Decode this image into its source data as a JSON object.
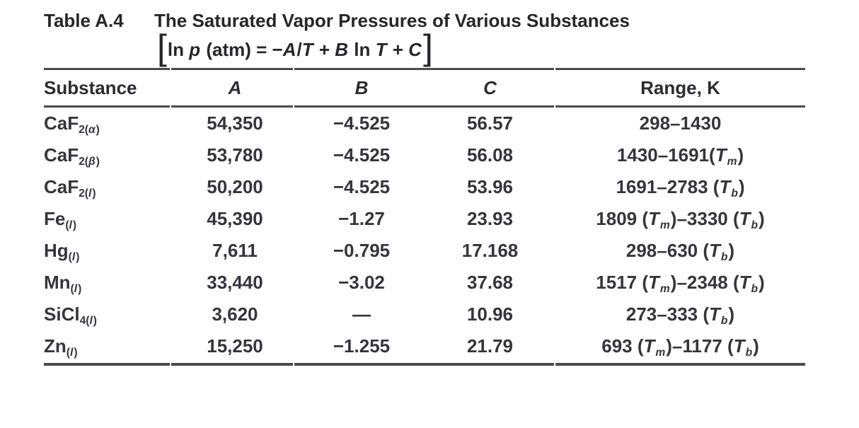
{
  "caption": {
    "label": "Table A.4",
    "title": "The Saturated Vapor Pressures of Various Substances",
    "formula_open": "[",
    "formula": "ln *p* (atm) = −*A*/*T* + *B* ln *T* + *C*",
    "formula_close": "]"
  },
  "table": {
    "columns": [
      "Substance",
      "A",
      "B",
      "C",
      "Range, K"
    ],
    "rows": [
      {
        "substance": "CaF~2(*α*)~",
        "a": "54,350",
        "b": "−4.525",
        "c": "56.57",
        "range": "298–1430"
      },
      {
        "substance": "CaF~2(*β*)~",
        "a": "53,780",
        "b": "−4.525",
        "c": "56.08",
        "range": "1430–1691(*T*~*m*~)"
      },
      {
        "substance": "CaF~2(*l*)~",
        "a": "50,200",
        "b": "−4.525",
        "c": "53.96",
        "range": "1691–2783 (*T*~*b*~)"
      },
      {
        "substance": "Fe~(*l*)~",
        "a": "45,390",
        "b": "−1.27",
        "c": "23.93",
        "range": "1809 (*T*~*m*~)–3330 (*T*~*b*~)"
      },
      {
        "substance": "Hg~(*l*)~",
        "a": "7,611",
        "b": "−0.795",
        "c": "17.168",
        "range": "298–630 (*T*~*b*~)"
      },
      {
        "substance": "Mn~(*l*)~",
        "a": "33,440",
        "b": "−3.02",
        "c": "37.68",
        "range": "1517 (*T*~*m*~)–2348 (*T*~*b*~)"
      },
      {
        "substance": "SiCl~4(*l*)~",
        "a": "3,620",
        "b": "—",
        "c": "10.96",
        "range": "273–333 (*T*~*b*~)"
      },
      {
        "substance": "Zn~(*l*)~",
        "a": "15,250",
        "b": "−1.255",
        "c": "21.79",
        "range": "693 (*T*~*m*~)–1177 (*T*~*b*~)"
      }
    ]
  }
}
